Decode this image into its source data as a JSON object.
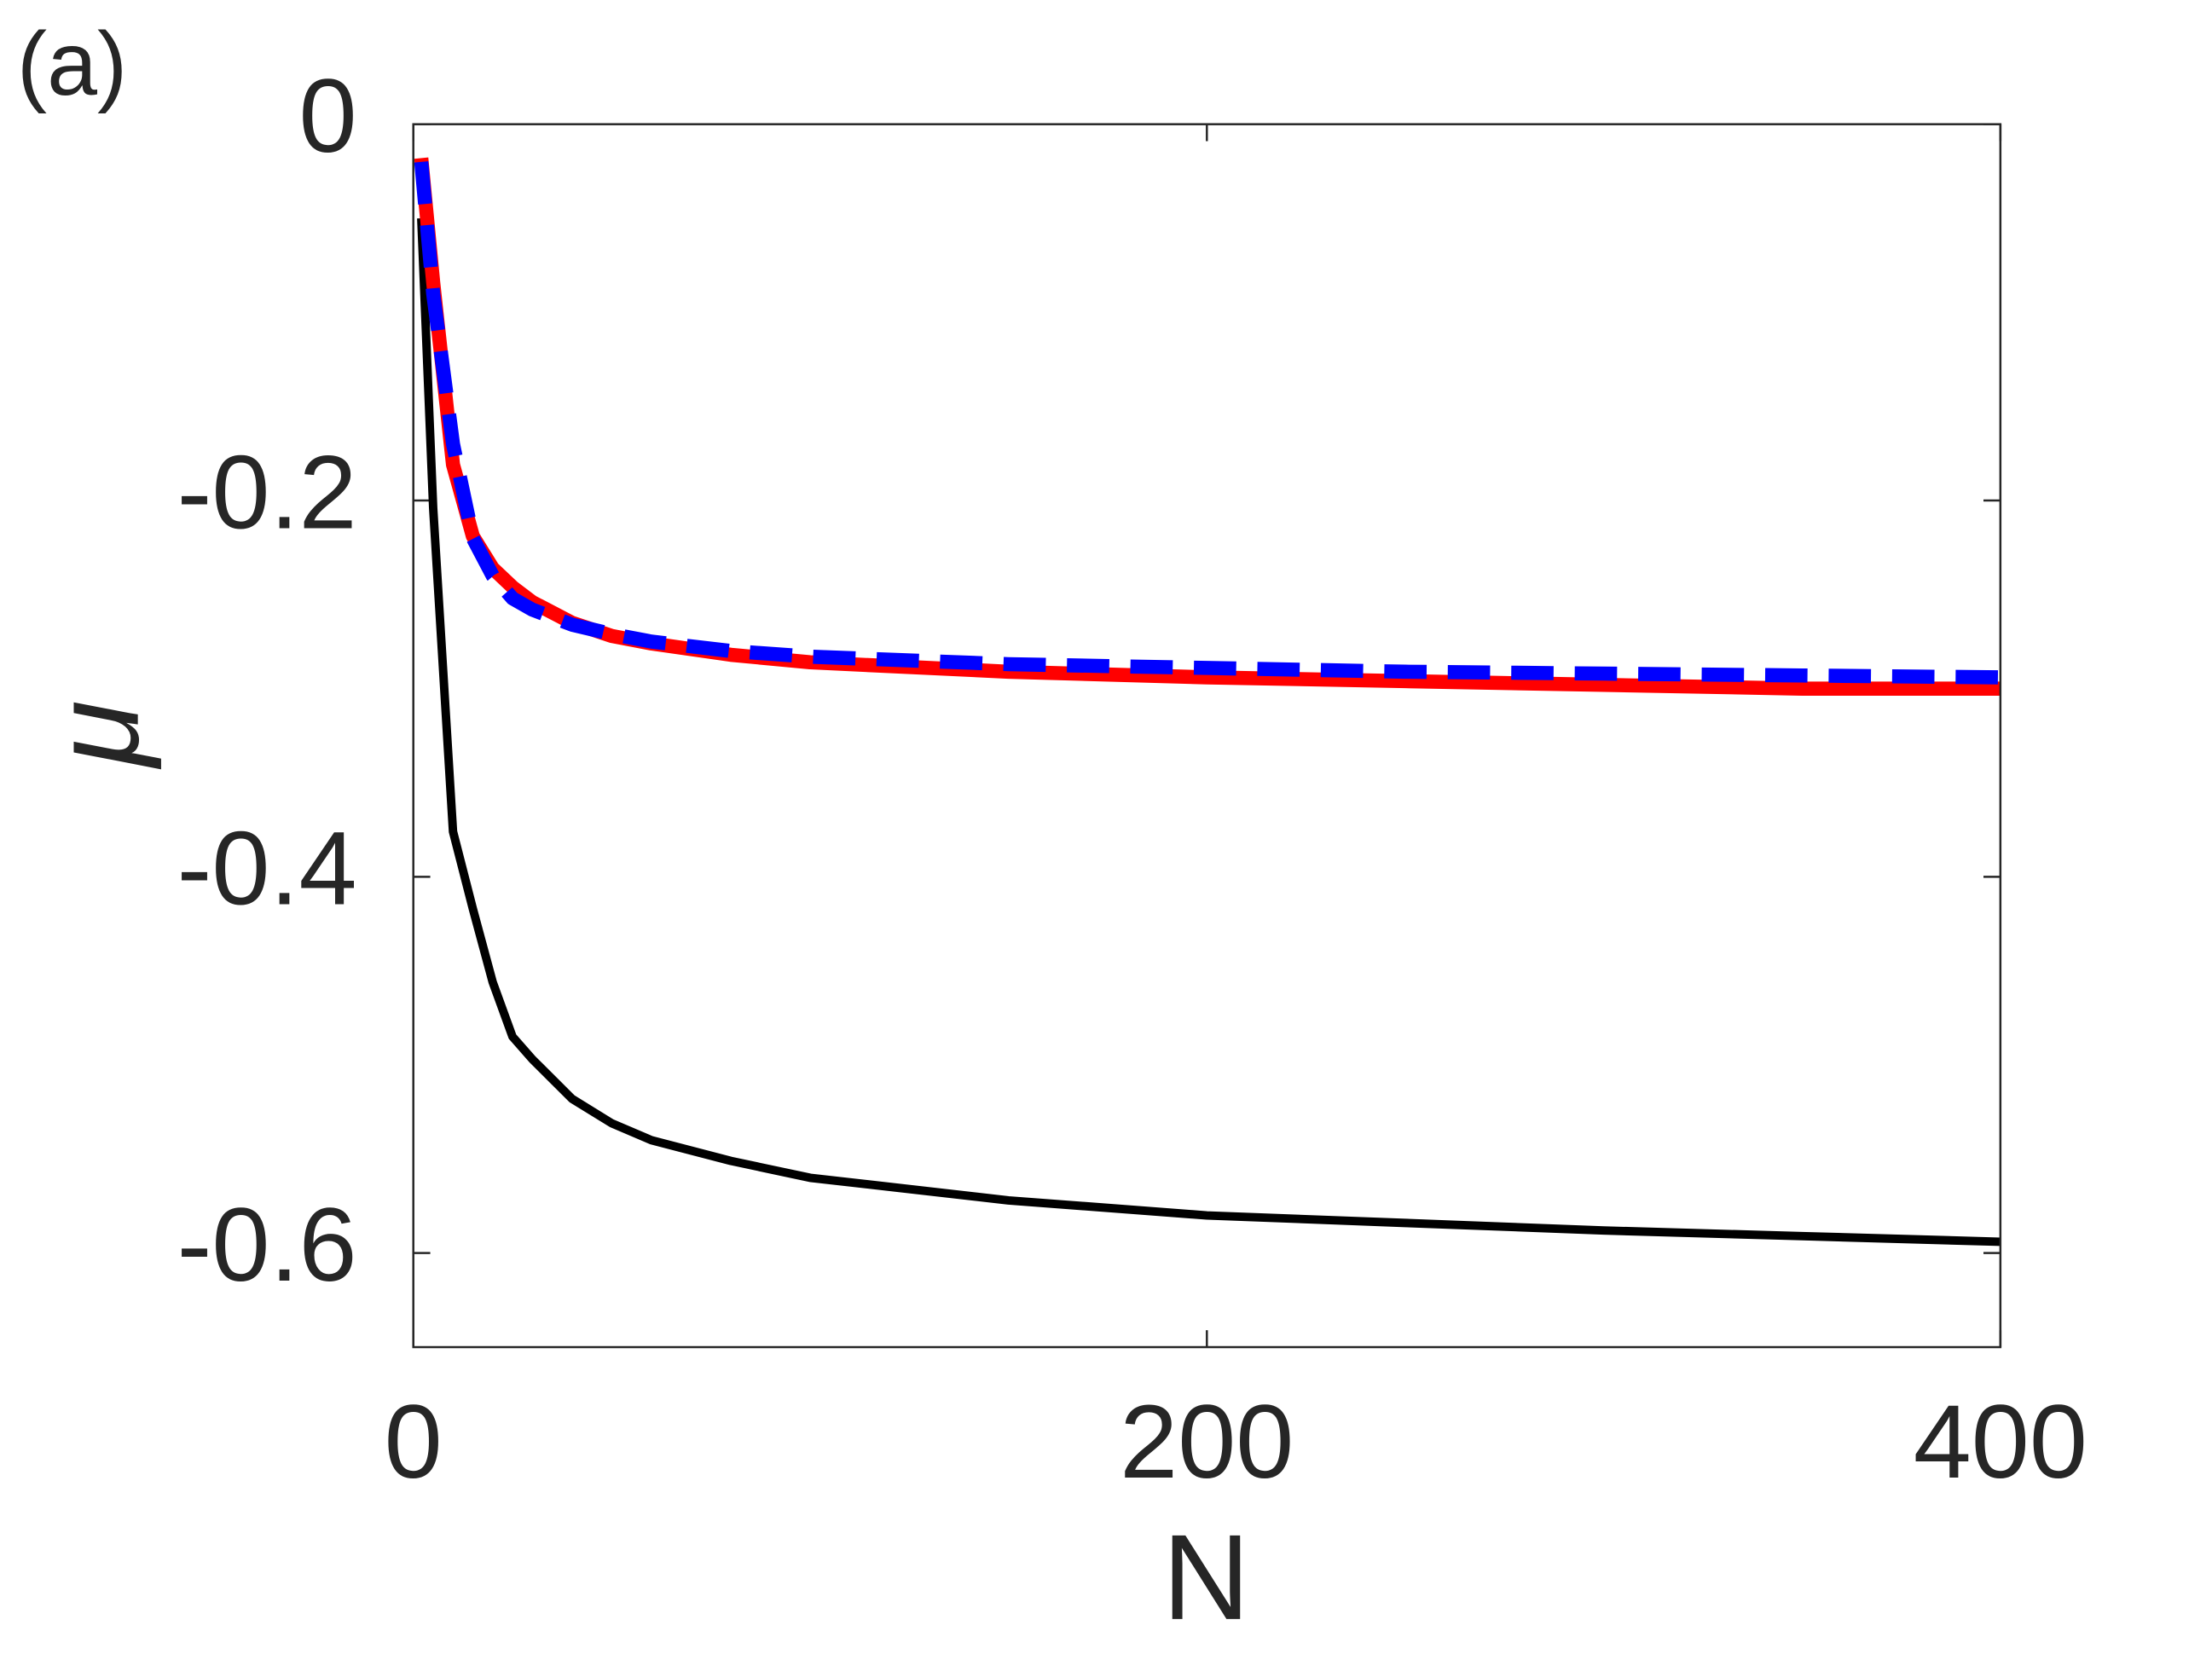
{
  "chart_data": {
    "type": "line",
    "panel_label": "(a)",
    "xlabel": "N",
    "ylabel": "μ",
    "x": [
      2,
      5,
      10,
      15,
      20,
      25,
      30,
      40,
      50,
      60,
      80,
      100,
      150,
      200,
      250,
      300,
      350,
      400
    ],
    "series": [
      {
        "color": "#000000",
        "style": "solid",
        "width": 6,
        "values": [
          -0.05,
          -0.204,
          -0.376,
          -0.417,
          -0.456,
          -0.485,
          -0.497,
          -0.518,
          -0.531,
          -0.54,
          -0.551,
          -0.56,
          -0.572,
          -0.58,
          -0.584,
          -0.588,
          -0.591,
          -0.594
        ]
      },
      {
        "color": "#ff0000",
        "style": "solid",
        "width": 10,
        "values": [
          -0.018,
          -0.084,
          -0.181,
          -0.219,
          -0.236,
          -0.246,
          -0.254,
          -0.265,
          -0.272,
          -0.276,
          -0.282,
          -0.286,
          -0.291,
          -0.294,
          -0.296,
          -0.298,
          -0.3,
          -0.3
        ]
      },
      {
        "color": "#0000ff",
        "style": "dashed",
        "width": 10,
        "values": [
          -0.02,
          -0.09,
          -0.17,
          -0.22,
          -0.24,
          -0.252,
          -0.258,
          -0.266,
          -0.271,
          -0.275,
          -0.28,
          -0.283,
          -0.287,
          -0.289,
          -0.291,
          -0.292,
          -0.293,
          -0.294
        ]
      }
    ],
    "xlim": [
      0,
      400
    ],
    "xticks": [
      0,
      200,
      400
    ],
    "ylim": [
      -0.65,
      0
    ],
    "yticks": [
      0,
      -0.2,
      -0.4,
      -0.6
    ]
  }
}
